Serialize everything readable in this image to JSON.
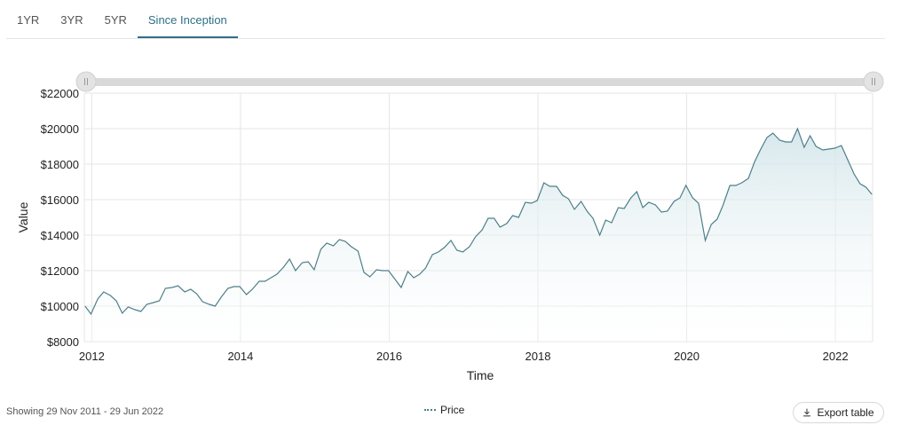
{
  "tabs": [
    {
      "label": "1YR",
      "active": false
    },
    {
      "label": "3YR",
      "active": false
    },
    {
      "label": "5YR",
      "active": false
    },
    {
      "label": "Since Inception",
      "active": true
    }
  ],
  "footer": {
    "range_text": "Showing 29 Nov 2011 - 29 Jun 2022",
    "legend_label": "Price",
    "export_label": "Export table",
    "export_icon": "download-icon"
  },
  "colors": {
    "line": "#4d7f89",
    "area_top": "#cfe3e8",
    "accent": "#2f6f85",
    "grid": "#e6e6e6"
  },
  "chart_data": {
    "type": "area",
    "title": "",
    "xlabel": "Time",
    "ylabel": "Value",
    "xlim": [
      2011.9,
      2022.5
    ],
    "ylim": [
      8000,
      22000
    ],
    "x_ticks": [
      2012,
      2014,
      2016,
      2018,
      2020,
      2022
    ],
    "y_ticks": [
      {
        "value": 8000,
        "label": "$8000"
      },
      {
        "value": 10000,
        "label": "$10000"
      },
      {
        "value": 12000,
        "label": "$12000"
      },
      {
        "value": 14000,
        "label": "$14000"
      },
      {
        "value": 16000,
        "label": "$16000"
      },
      {
        "value": 18000,
        "label": "$18000"
      },
      {
        "value": 20000,
        "label": "$20000"
      },
      {
        "value": 22000,
        "label": "$22000"
      }
    ],
    "grid": true,
    "legend": "bottom-center",
    "navigator": "full-range slider above plot",
    "series": [
      {
        "name": "Price",
        "points": [
          [
            2011.91,
            10000
          ],
          [
            2011.99,
            9550
          ],
          [
            2012.08,
            10400
          ],
          [
            2012.16,
            10800
          ],
          [
            2012.25,
            10600
          ],
          [
            2012.33,
            10300
          ],
          [
            2012.41,
            9600
          ],
          [
            2012.49,
            9950
          ],
          [
            2012.58,
            9800
          ],
          [
            2012.66,
            9700
          ],
          [
            2012.74,
            10100
          ],
          [
            2012.83,
            10200
          ],
          [
            2012.91,
            10300
          ],
          [
            2012.99,
            11000
          ],
          [
            2013.08,
            11050
          ],
          [
            2013.16,
            11150
          ],
          [
            2013.25,
            10800
          ],
          [
            2013.33,
            10950
          ],
          [
            2013.41,
            10700
          ],
          [
            2013.49,
            10250
          ],
          [
            2013.58,
            10100
          ],
          [
            2013.66,
            10000
          ],
          [
            2013.74,
            10500
          ],
          [
            2013.83,
            11000
          ],
          [
            2013.91,
            11100
          ],
          [
            2013.99,
            11100
          ],
          [
            2014.08,
            10650
          ],
          [
            2014.16,
            10950
          ],
          [
            2014.25,
            11400
          ],
          [
            2014.33,
            11400
          ],
          [
            2014.41,
            11600
          ],
          [
            2014.49,
            11800
          ],
          [
            2014.58,
            12200
          ],
          [
            2014.66,
            12650
          ],
          [
            2014.74,
            12000
          ],
          [
            2014.83,
            12450
          ],
          [
            2014.91,
            12500
          ],
          [
            2014.99,
            12050
          ],
          [
            2015.08,
            13200
          ],
          [
            2015.16,
            13550
          ],
          [
            2015.25,
            13400
          ],
          [
            2015.33,
            13750
          ],
          [
            2015.41,
            13650
          ],
          [
            2015.49,
            13350
          ],
          [
            2015.58,
            13100
          ],
          [
            2015.66,
            11900
          ],
          [
            2015.74,
            11650
          ],
          [
            2015.83,
            12050
          ],
          [
            2015.91,
            12000
          ],
          [
            2015.99,
            12000
          ],
          [
            2016.08,
            11500
          ],
          [
            2016.16,
            11050
          ],
          [
            2016.25,
            11950
          ],
          [
            2016.33,
            11600
          ],
          [
            2016.41,
            11800
          ],
          [
            2016.49,
            12150
          ],
          [
            2016.58,
            12900
          ],
          [
            2016.66,
            13050
          ],
          [
            2016.74,
            13300
          ],
          [
            2016.83,
            13700
          ],
          [
            2016.91,
            13150
          ],
          [
            2016.99,
            13050
          ],
          [
            2017.08,
            13350
          ],
          [
            2017.16,
            13900
          ],
          [
            2017.25,
            14300
          ],
          [
            2017.33,
            14950
          ],
          [
            2017.41,
            14950
          ],
          [
            2017.49,
            14450
          ],
          [
            2017.58,
            14650
          ],
          [
            2017.66,
            15100
          ],
          [
            2017.74,
            15000
          ],
          [
            2017.83,
            15850
          ],
          [
            2017.91,
            15800
          ],
          [
            2017.99,
            15950
          ],
          [
            2018.08,
            16950
          ],
          [
            2018.16,
            16750
          ],
          [
            2018.25,
            16750
          ],
          [
            2018.33,
            16250
          ],
          [
            2018.41,
            16050
          ],
          [
            2018.49,
            15450
          ],
          [
            2018.58,
            15900
          ],
          [
            2018.66,
            15350
          ],
          [
            2018.74,
            14950
          ],
          [
            2018.83,
            14000
          ],
          [
            2018.91,
            14850
          ],
          [
            2018.99,
            14700
          ],
          [
            2019.08,
            15550
          ],
          [
            2019.16,
            15500
          ],
          [
            2019.25,
            16100
          ],
          [
            2019.33,
            16450
          ],
          [
            2019.41,
            15550
          ],
          [
            2019.49,
            15850
          ],
          [
            2019.58,
            15700
          ],
          [
            2019.66,
            15300
          ],
          [
            2019.74,
            15350
          ],
          [
            2019.83,
            15900
          ],
          [
            2019.91,
            16100
          ],
          [
            2019.99,
            16800
          ],
          [
            2020.08,
            16100
          ],
          [
            2020.16,
            15800
          ],
          [
            2020.25,
            13700
          ],
          [
            2020.33,
            14600
          ],
          [
            2020.41,
            14900
          ],
          [
            2020.49,
            15700
          ],
          [
            2020.58,
            16800
          ],
          [
            2020.66,
            16800
          ],
          [
            2020.74,
            16950
          ],
          [
            2020.83,
            17200
          ],
          [
            2020.91,
            18100
          ],
          [
            2020.99,
            18800
          ],
          [
            2021.08,
            19500
          ],
          [
            2021.16,
            19750
          ],
          [
            2021.25,
            19350
          ],
          [
            2021.33,
            19250
          ],
          [
            2021.41,
            19250
          ],
          [
            2021.49,
            20000
          ],
          [
            2021.58,
            18950
          ],
          [
            2021.66,
            19600
          ],
          [
            2021.74,
            19000
          ],
          [
            2021.83,
            18800
          ],
          [
            2021.91,
            18850
          ],
          [
            2021.99,
            18900
          ],
          [
            2022.08,
            19050
          ],
          [
            2022.16,
            18300
          ],
          [
            2022.25,
            17450
          ],
          [
            2022.33,
            16900
          ],
          [
            2022.41,
            16700
          ],
          [
            2022.49,
            16300
          ]
        ]
      }
    ]
  }
}
